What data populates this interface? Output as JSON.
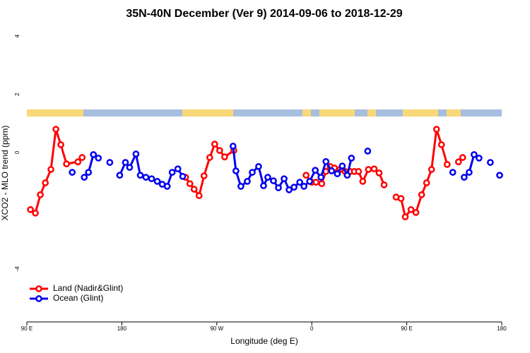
{
  "chart_data": {
    "type": "line",
    "title": "35N-40N December (Ver 9)   2014-09-06 to 2018-12-29",
    "x_label": "Longitude (deg E)",
    "y_label": "XCO2 - MLO trend (ppm)",
    "xlim": [
      90,
      540
    ],
    "xticks": [
      {
        "value": 90,
        "label": "90 E"
      },
      180,
      {
        "value": 270,
        "label": "90 W"
      },
      {
        "value": 360,
        "label": "0"
      },
      {
        "value": 450,
        "label": "90 E"
      },
      {
        "value": 540,
        "label": "180"
      }
    ],
    "ylim": [
      -5.82,
      4.32
    ],
    "yticks": [
      -4,
      0,
      2,
      4
    ],
    "legend": "bottom-left",
    "series": [
      {
        "name": "Land (Nadir&Glint)",
        "color": "#ff0000",
        "x": [
          93.4,
          98.1,
          102.8,
          107.5,
          112.8,
          117.5,
          122.2,
          127.6,
          138.4,
          142.4,
          null,
          240.4,
          244.5,
          248.5,
          253.2,
          257.9,
          263.3,
          268.0,
          272.7,
          277.4,
          286.1,
          null,
          354.6,
          360.0,
          364.0,
          369.4,
          373.4,
          377.4,
          381.5,
          386.8,
          391.5,
          396.3,
          400.3,
          404.3,
          408.3,
          413.7,
          419.1,
          423.8,
          428.5,
          null,
          439.9,
          444.6,
          448.6,
          454.0,
          458.7,
          464.1,
          468.8,
          473.5,
          478.2,
          482.9,
          488.3,
          null,
          499.0,
          503.0
        ],
        "values": [
          -1.96,
          -2.08,
          -1.45,
          -1.04,
          -0.58,
          0.8,
          0.27,
          -0.39,
          -0.32,
          -0.17,
          null,
          -0.85,
          -1.07,
          -1.26,
          -1.48,
          -0.8,
          -0.17,
          0.29,
          0.07,
          -0.15,
          0.07,
          null,
          -0.78,
          -1.02,
          -1.02,
          -1.07,
          -0.65,
          -0.48,
          -0.53,
          -0.58,
          -0.65,
          -0.65,
          -0.65,
          -0.65,
          -0.99,
          -0.58,
          -0.56,
          -0.7,
          -1.11,
          null,
          -1.53,
          -1.58,
          -2.21,
          -1.96,
          -2.06,
          -1.45,
          -1.04,
          -0.58,
          0.8,
          0.27,
          -0.41,
          null,
          -0.32,
          -0.17
        ]
      },
      {
        "name": "Ocean (Glint)",
        "color": "#0000ee",
        "x": [
          133.0,
          null,
          144.4,
          148.4,
          153.1,
          157.8,
          null,
          168.6,
          null,
          178.0,
          183.4,
          187.4,
          193.4,
          197.5,
          202.8,
          208.2,
          213.6,
          218.3,
          223.0,
          227.7,
          233.1,
          237.7,
          null,
          285.4,
          288.1,
          292.8,
          298.9,
          303.6,
          309.6,
          314.3,
          318.3,
          323.7,
          328.4,
          333.8,
          338.5,
          343.2,
          348.6,
          352.6,
          358.0,
          363.3,
          368.7,
          373.4,
          378.8,
          384.2,
          388.9,
          393.6,
          397.6,
          null,
          413.0,
          null,
          493.6,
          null,
          504.4,
          509.1,
          513.8,
          518.5,
          null,
          529.2,
          null,
          538.0
        ],
        "values": [
          -0.68,
          null,
          -0.85,
          -0.68,
          -0.07,
          -0.19,
          null,
          -0.34,
          null,
          -0.78,
          -0.34,
          -0.51,
          -0.05,
          -0.78,
          -0.85,
          -0.9,
          -0.99,
          -1.09,
          -1.16,
          -0.68,
          -0.56,
          -0.82,
          null,
          0.22,
          -0.63,
          -1.16,
          -0.99,
          -0.68,
          -0.48,
          -1.14,
          -0.85,
          -0.97,
          -1.21,
          -0.9,
          -1.28,
          -1.19,
          -1.02,
          -1.16,
          -0.99,
          -0.61,
          -0.85,
          -0.31,
          -0.63,
          -0.73,
          -0.46,
          -0.78,
          -0.19,
          null,
          0.05,
          null,
          -0.68,
          null,
          -0.85,
          -0.68,
          -0.07,
          -0.19,
          null,
          -0.34,
          null,
          -0.78
        ]
      }
    ]
  }
}
